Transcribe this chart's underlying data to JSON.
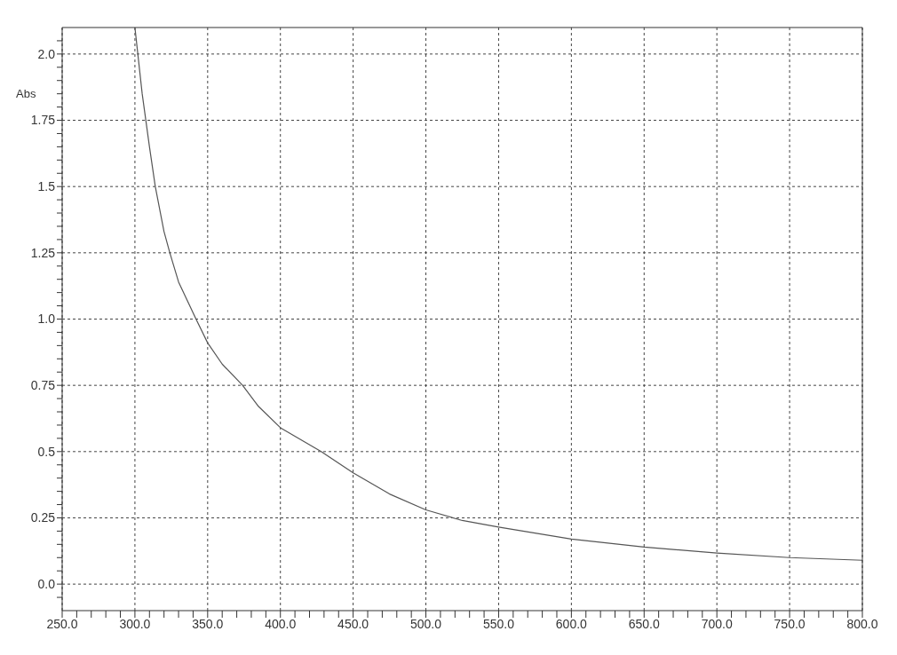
{
  "chart_data": {
    "type": "line",
    "ylabel": "Abs",
    "x": [
      300,
      305,
      310,
      314,
      320,
      324,
      330,
      342,
      350,
      360,
      374,
      385,
      400,
      428,
      450,
      475,
      500,
      525,
      550,
      600,
      650,
      700,
      750,
      800
    ],
    "series": [
      {
        "color": "#555555",
        "values": [
          2.1,
          1.85,
          1.65,
          1.5,
          1.33,
          1.25,
          1.14,
          1.0,
          0.91,
          0.83,
          0.75,
          0.67,
          0.59,
          0.5,
          0.42,
          0.34,
          0.28,
          0.24,
          0.215,
          0.17,
          0.14,
          0.117,
          0.1,
          0.09
        ]
      }
    ],
    "xlim": [
      250,
      800
    ],
    "ylim": [
      -0.1,
      2.1
    ],
    "xticks": [
      {
        "value": 250,
        "label": "250.0"
      },
      {
        "value": 260,
        "label": null
      },
      {
        "value": 270,
        "label": null
      },
      {
        "value": 280,
        "label": null
      },
      {
        "value": 290,
        "label": null
      },
      {
        "value": 300,
        "label": "300.0"
      },
      {
        "value": 310,
        "label": null
      },
      {
        "value": 320,
        "label": null
      },
      {
        "value": 330,
        "label": null
      },
      {
        "value": 340,
        "label": null
      },
      {
        "value": 350,
        "label": "350.0"
      },
      {
        "value": 360,
        "label": null
      },
      {
        "value": 370,
        "label": null
      },
      {
        "value": 380,
        "label": null
      },
      {
        "value": 390,
        "label": null
      },
      {
        "value": 400,
        "label": "400.0"
      },
      {
        "value": 410,
        "label": null
      },
      {
        "value": 420,
        "label": null
      },
      {
        "value": 430,
        "label": null
      },
      {
        "value": 440,
        "label": null
      },
      {
        "value": 450,
        "label": "450.0"
      },
      {
        "value": 460,
        "label": null
      },
      {
        "value": 470,
        "label": null
      },
      {
        "value": 480,
        "label": null
      },
      {
        "value": 490,
        "label": null
      },
      {
        "value": 500,
        "label": "500.0"
      },
      {
        "value": 510,
        "label": null
      },
      {
        "value": 520,
        "label": null
      },
      {
        "value": 530,
        "label": null
      },
      {
        "value": 540,
        "label": null
      },
      {
        "value": 550,
        "label": "550.0"
      },
      {
        "value": 560,
        "label": null
      },
      {
        "value": 570,
        "label": null
      },
      {
        "value": 580,
        "label": null
      },
      {
        "value": 590,
        "label": null
      },
      {
        "value": 600,
        "label": "600.0"
      },
      {
        "value": 610,
        "label": null
      },
      {
        "value": 620,
        "label": null
      },
      {
        "value": 630,
        "label": null
      },
      {
        "value": 640,
        "label": null
      },
      {
        "value": 650,
        "label": "650.0"
      },
      {
        "value": 660,
        "label": null
      },
      {
        "value": 670,
        "label": null
      },
      {
        "value": 680,
        "label": null
      },
      {
        "value": 690,
        "label": null
      },
      {
        "value": 700,
        "label": "700.0"
      },
      {
        "value": 710,
        "label": null
      },
      {
        "value": 720,
        "label": null
      },
      {
        "value": 730,
        "label": null
      },
      {
        "value": 740,
        "label": null
      },
      {
        "value": 750,
        "label": "750.0"
      },
      {
        "value": 760,
        "label": null
      },
      {
        "value": 770,
        "label": null
      },
      {
        "value": 780,
        "label": null
      },
      {
        "value": 790,
        "label": null
      },
      {
        "value": 800,
        "label": "800.0"
      }
    ],
    "yticks": [
      {
        "value": -0.05,
        "label": null
      },
      {
        "value": 0,
        "label": "0.0"
      },
      {
        "value": 0.05,
        "label": null
      },
      {
        "value": 0.1,
        "label": null
      },
      {
        "value": 0.15,
        "label": null
      },
      {
        "value": 0.2,
        "label": null
      },
      0.25,
      {
        "value": 0.3,
        "label": null
      },
      {
        "value": 0.35,
        "label": null
      },
      {
        "value": 0.4,
        "label": null
      },
      {
        "value": 0.45,
        "label": null
      },
      0.5,
      {
        "value": 0.55,
        "label": null
      },
      {
        "value": 0.6,
        "label": null
      },
      {
        "value": 0.65,
        "label": null
      },
      {
        "value": 0.7,
        "label": null
      },
      0.75,
      {
        "value": 0.8,
        "label": null
      },
      {
        "value": 0.85,
        "label": null
      },
      {
        "value": 0.9,
        "label": null
      },
      {
        "value": 0.95,
        "label": null
      },
      {
        "value": 1,
        "label": "1.0"
      },
      {
        "value": 1.05,
        "label": null
      },
      {
        "value": 1.1,
        "label": null
      },
      {
        "value": 1.15,
        "label": null
      },
      {
        "value": 1.2,
        "label": null
      },
      1.25,
      {
        "value": 1.3,
        "label": null
      },
      {
        "value": 1.35,
        "label": null
      },
      {
        "value": 1.4,
        "label": null
      },
      {
        "value": 1.45,
        "label": null
      },
      1.5,
      {
        "value": 1.55,
        "label": null
      },
      {
        "value": 1.6,
        "label": null
      },
      {
        "value": 1.65,
        "label": null
      },
      {
        "value": 1.7,
        "label": null
      },
      1.75,
      {
        "value": 1.8,
        "label": null
      },
      {
        "value": 1.85,
        "label": null
      },
      {
        "value": 1.9,
        "label": null
      },
      {
        "value": 1.95,
        "label": null
      },
      {
        "value": 2,
        "label": "2.0"
      },
      {
        "value": 2.05,
        "label": null
      }
    ],
    "grid": true,
    "marker": "none",
    "line_style": "solid"
  }
}
